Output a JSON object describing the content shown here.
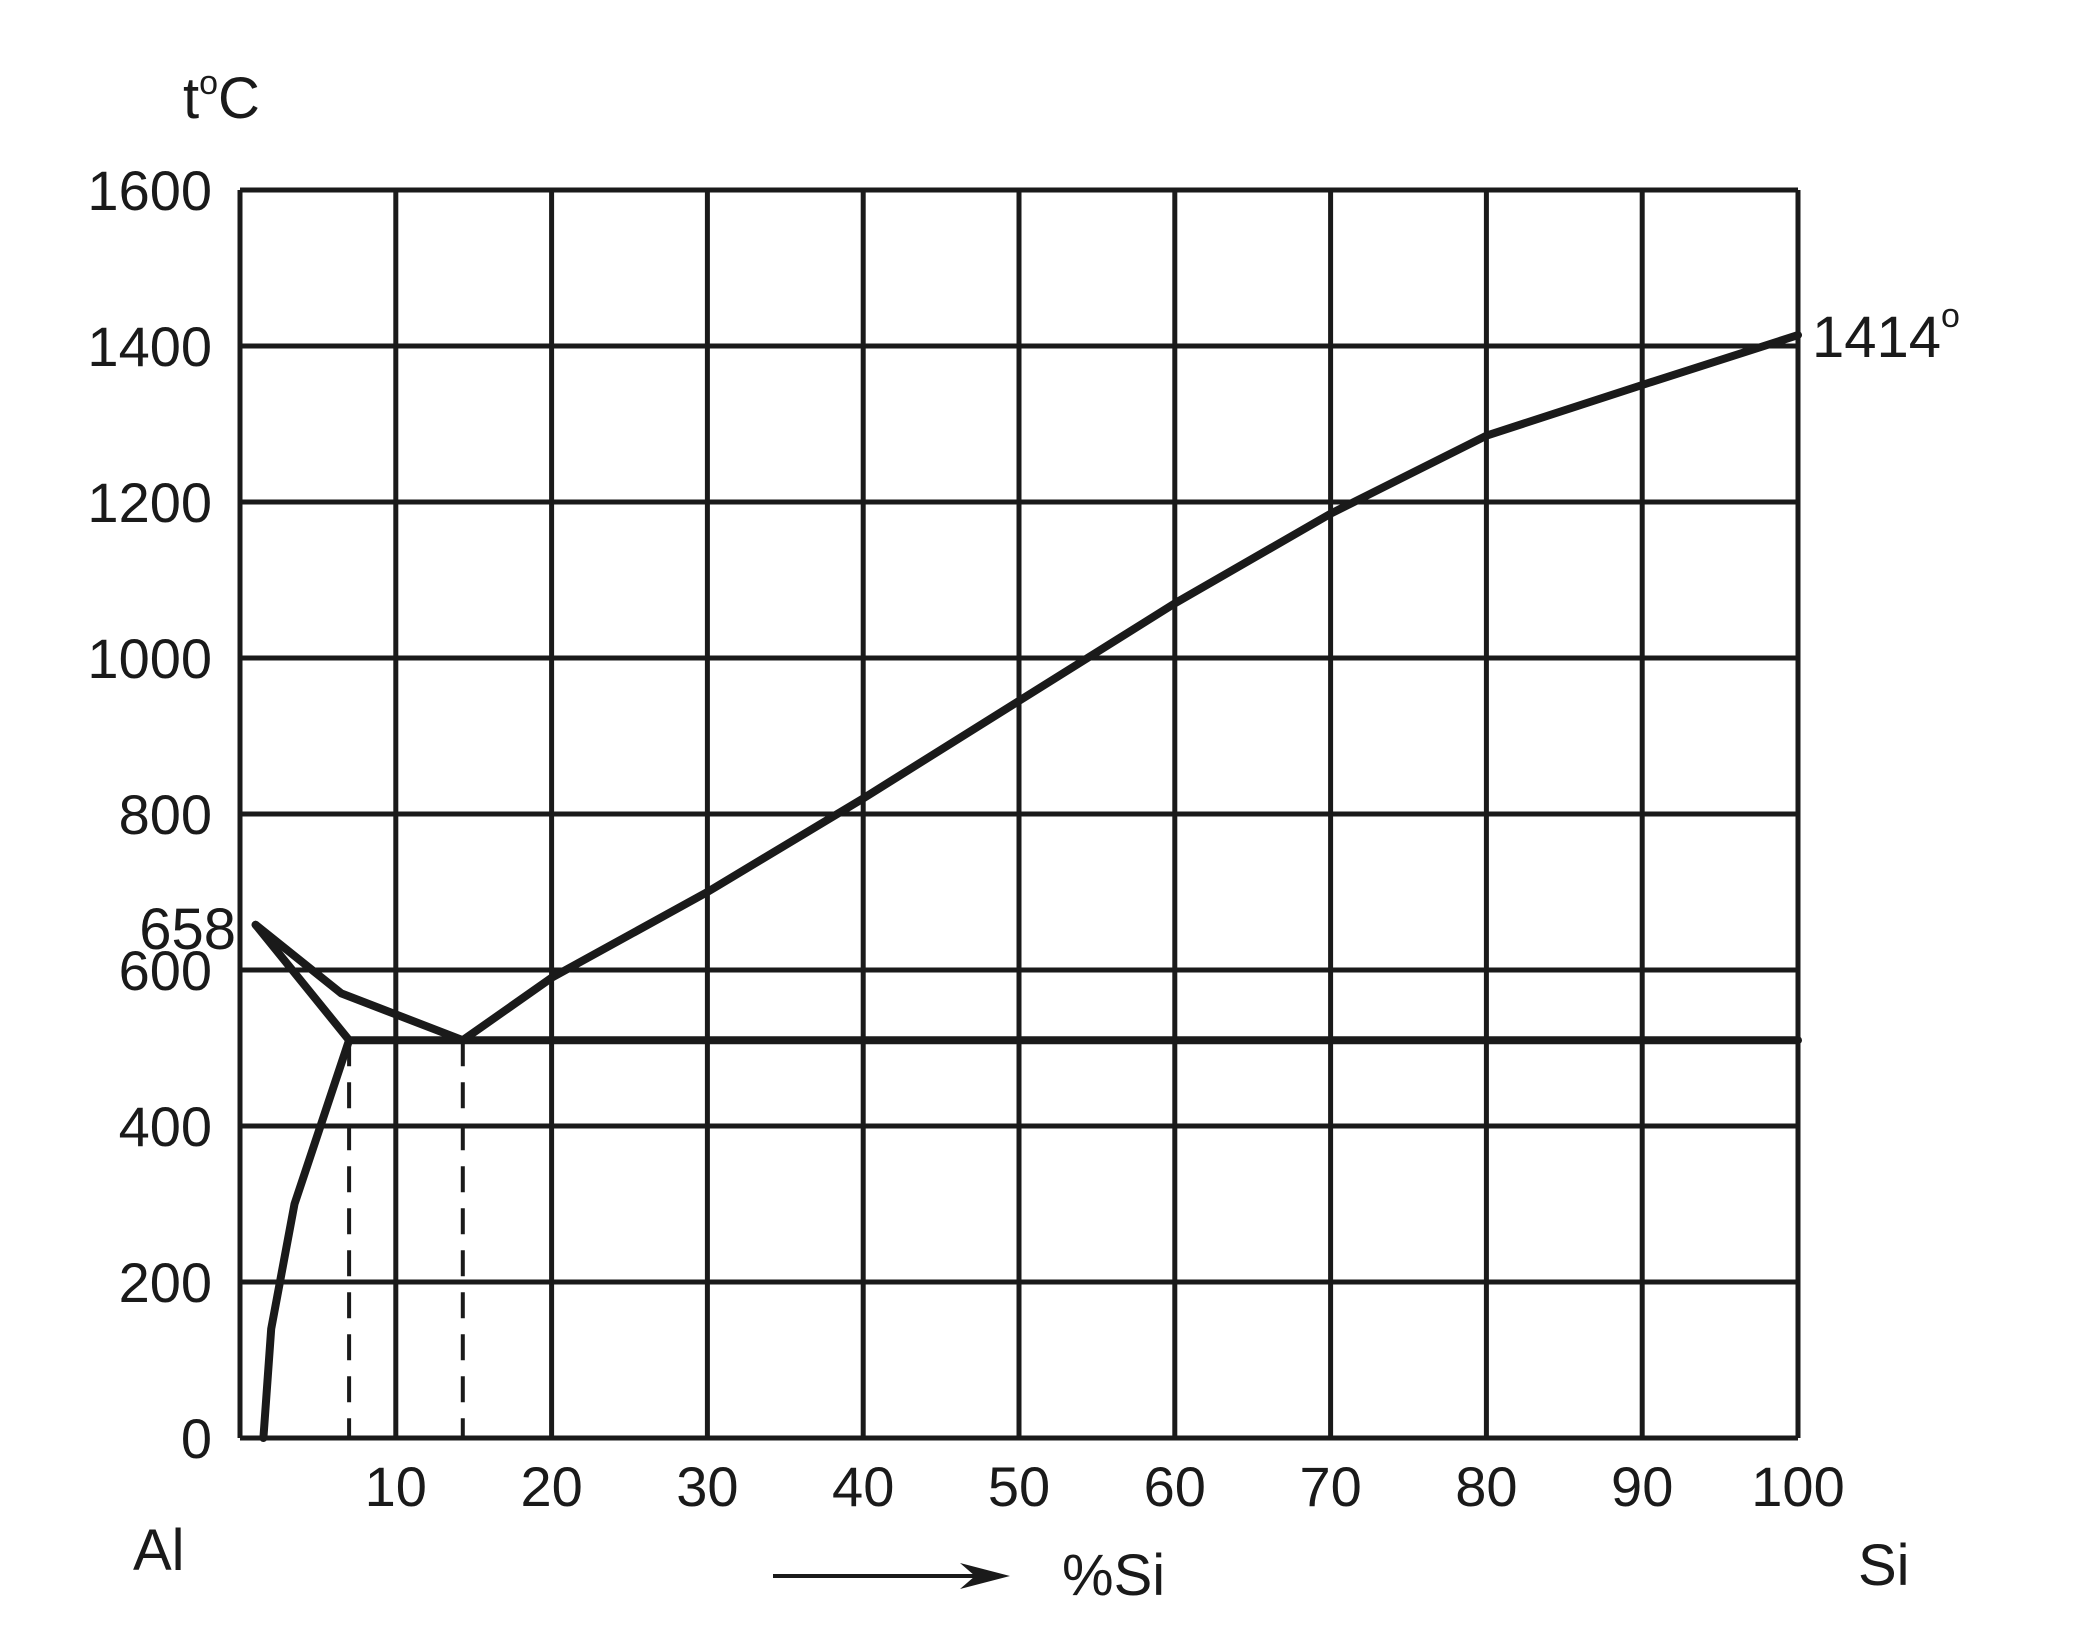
{
  "chart_data": {
    "type": "line",
    "title": "",
    "ylabel": {
      "main": "t",
      "sup": "o",
      "unit": "C"
    },
    "xlabel": "%Si",
    "left_element": "Al",
    "right_element": "Si",
    "xlim": [
      0,
      100
    ],
    "ylim": [
      0,
      1600
    ],
    "x_ticks": [
      "10",
      "20",
      "30",
      "40",
      "50",
      "60",
      "70",
      "80",
      "90",
      "100"
    ],
    "y_ticks": [
      "0",
      "200",
      "400",
      "600",
      "800",
      "1000",
      "1200",
      "1400",
      "1600"
    ],
    "grid": true,
    "series": [
      {
        "id": "liquidus-al",
        "style": "solid",
        "points": [
          [
            1,
            658
          ],
          [
            6.5,
            570
          ],
          [
            14.3,
            510
          ]
        ]
      },
      {
        "id": "solidus-al",
        "style": "solid",
        "points": [
          [
            1,
            658
          ],
          [
            7,
            510
          ]
        ]
      },
      {
        "id": "solvus-al",
        "style": "solid",
        "points": [
          [
            1.5,
            0
          ],
          [
            2,
            140
          ],
          [
            3.5,
            300
          ],
          [
            7,
            510
          ]
        ]
      },
      {
        "id": "eutectic-line",
        "style": "solid",
        "points": [
          [
            7,
            510
          ],
          [
            100,
            510
          ]
        ]
      },
      {
        "id": "liquidus-si",
        "style": "solid",
        "points": [
          [
            14.3,
            510
          ],
          [
            20,
            590
          ],
          [
            30,
            700
          ],
          [
            40,
            820
          ],
          [
            50,
            945
          ],
          [
            60,
            1070
          ],
          [
            70,
            1185
          ],
          [
            80,
            1285
          ],
          [
            90,
            1350
          ],
          [
            100,
            1414
          ]
        ]
      },
      {
        "id": "drop-line-solubility",
        "style": "dashed",
        "points": [
          [
            7,
            510
          ],
          [
            7,
            0
          ]
        ]
      },
      {
        "id": "drop-line-eutectic",
        "style": "dashed",
        "points": [
          [
            14.3,
            510
          ],
          [
            14.3,
            0
          ]
        ]
      }
    ],
    "annotations": [
      {
        "text": "658",
        "x": 0,
        "y": 658,
        "side": "left"
      },
      {
        "text": "1414",
        "sup": "o",
        "x": 100,
        "y": 1414,
        "side": "right"
      }
    ]
  }
}
